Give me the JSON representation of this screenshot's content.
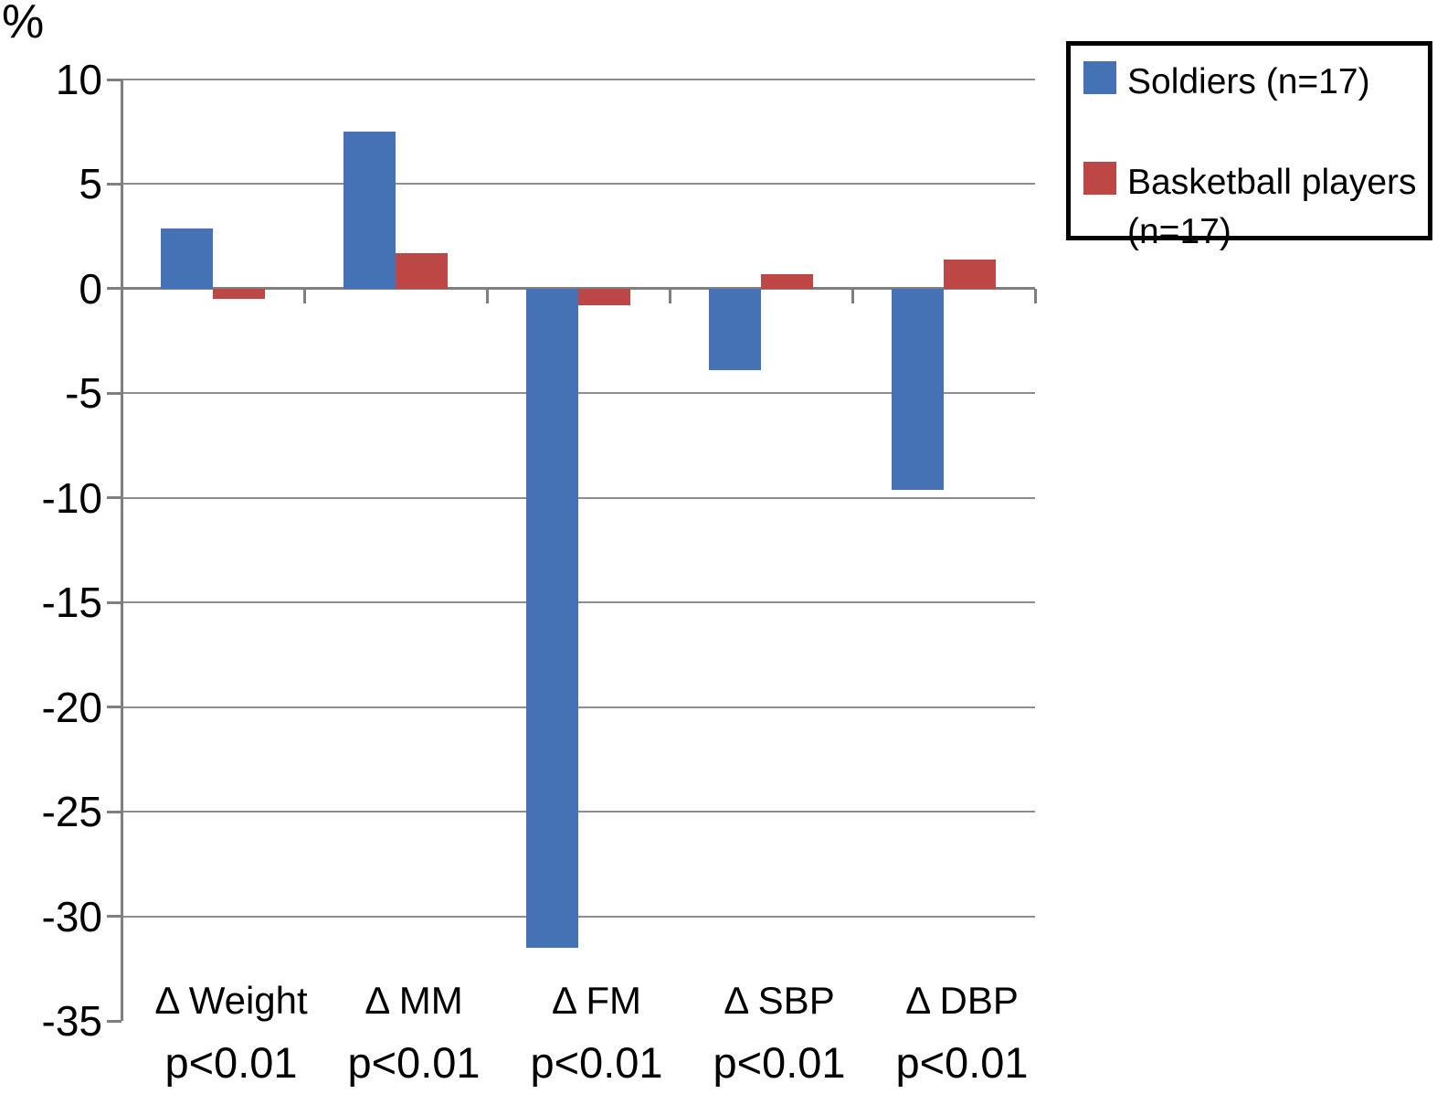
{
  "figure": {
    "background": "#ffffff",
    "text_color": "#000000"
  },
  "legend": {
    "border_color": "#000000",
    "items": [
      {
        "label": "Soldiers (n=17)",
        "color": "#4472B4"
      },
      {
        "label": "Basketball players (n=17)",
        "color": "#BC4744"
      }
    ]
  },
  "chart_data": {
    "type": "bar",
    "title": "",
    "y_unit_label": "%",
    "xlabel": "",
    "ylabel": "%",
    "categories": [
      "Δ Weight",
      "Δ MM",
      "Δ FM",
      "Δ SBP",
      "Δ DBP"
    ],
    "category_sublabels": [
      "p<0.01",
      "p<0.01",
      "p<0.01",
      "p<0.01",
      "p<0.01"
    ],
    "series": [
      {
        "name": "Soldiers (n=17)",
        "color": "#4472B4",
        "values": [
          2.9,
          7.5,
          -31.5,
          -3.9,
          -9.6
        ]
      },
      {
        "name": "Basketball players (n=17)",
        "color": "#BC4744",
        "values": [
          -0.5,
          1.7,
          -0.8,
          0.7,
          1.4
        ]
      }
    ],
    "y_axis": {
      "min": -35,
      "max": 10,
      "tick_step": 5,
      "tick_labels": [
        "10",
        "5",
        "0",
        "-5",
        "-10",
        "-15",
        "-20",
        "-25",
        "-30",
        "-35"
      ]
    },
    "grid": true,
    "gridline_color": "#8e8e8e",
    "axis_color": "#7f7f7f",
    "legend_position": "top-right"
  }
}
